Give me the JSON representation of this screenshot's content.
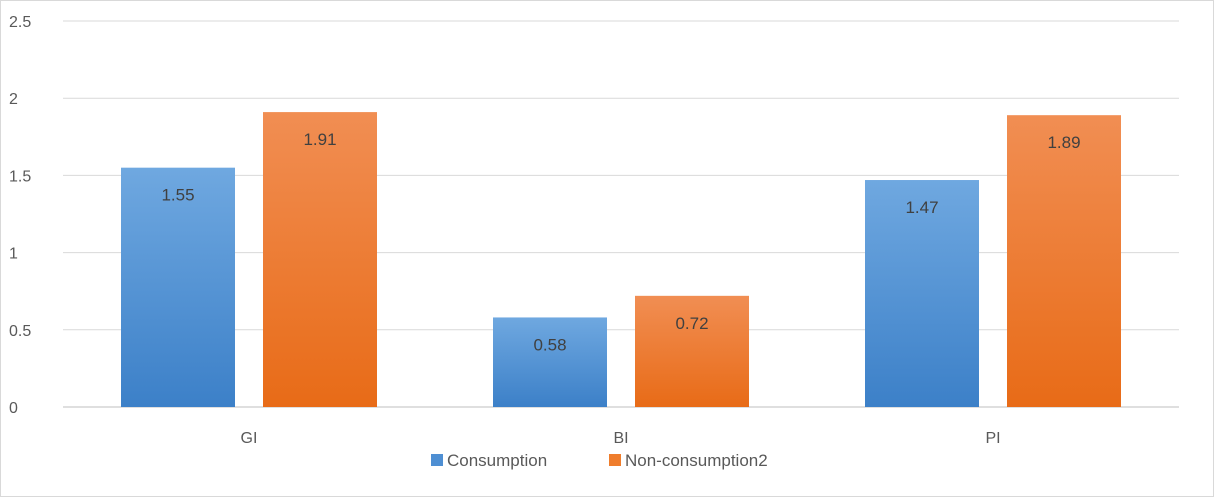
{
  "chart_data": {
    "type": "bar",
    "title": "",
    "xlabel": "",
    "ylabel": "",
    "categories": [
      "GI",
      "BI",
      "PI"
    ],
    "series": [
      {
        "name": "Consumption",
        "values": [
          1.55,
          0.58,
          1.47
        ],
        "color": "#4e8fd3"
      },
      {
        "name": "Non-consumption2",
        "values": [
          1.91,
          0.72,
          1.89
        ],
        "color": "#ef7d2c"
      }
    ],
    "ylim": [
      0,
      2.5
    ],
    "yticks": [
      "0",
      "0.5",
      "1",
      "1.5",
      "2",
      "2.5"
    ],
    "grid": true,
    "legend_position": "bottom",
    "data_labels": [
      "1.55",
      "1.91",
      "0.58",
      "0.72",
      "1.47",
      "1.89"
    ]
  }
}
